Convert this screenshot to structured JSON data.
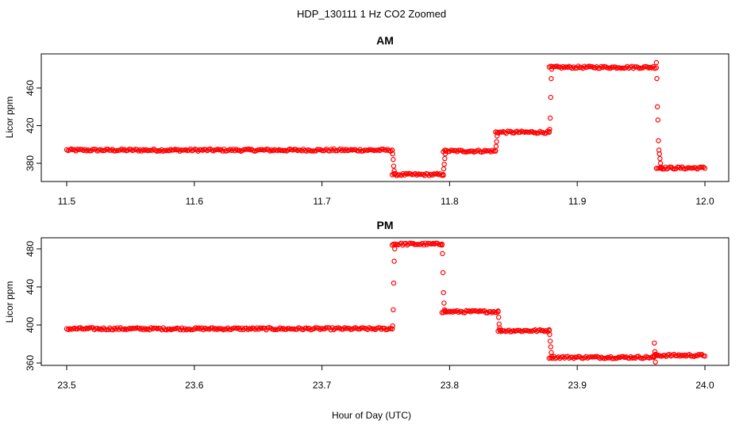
{
  "figure": {
    "title": "HDP_130111  1 Hz CO2 Zoomed",
    "xlabel": "Hour of Day (UTC)"
  },
  "colors": {
    "points": "#ff0000",
    "axes": "#000000"
  },
  "chart_data": [
    {
      "type": "scatter",
      "title": "AM",
      "ylabel": "Licor ppm",
      "xlim": [
        11.5,
        12.0
      ],
      "ylim": [
        362,
        494
      ],
      "xticks": [
        "11.5",
        "11.6",
        "11.7",
        "11.8",
        "11.9",
        "12.0"
      ],
      "yticks": [
        "380",
        "420",
        "460"
      ],
      "segments": [
        {
          "x0": 11.5,
          "x1": 11.755,
          "y": 394
        },
        {
          "x0": 11.755,
          "x1": 11.795,
          "y": 368
        },
        {
          "x0": 11.795,
          "x1": 11.836,
          "y": 393
        },
        {
          "x0": 11.836,
          "x1": 11.878,
          "y": 413
        },
        {
          "x0": 11.878,
          "x1": 11.962,
          "y": 482
        },
        {
          "x0": 11.962,
          "x1": 12.0,
          "y": 375
        }
      ],
      "transitions": [
        {
          "x": 11.755,
          "y": [
            394,
            390,
            384,
            377,
            372,
            368
          ]
        },
        {
          "x": 11.795,
          "y": [
            368,
            374,
            379,
            385,
            390,
            393
          ]
        },
        {
          "x": 11.836,
          "y": [
            393,
            398,
            403,
            409,
            413
          ]
        },
        {
          "x": 11.878,
          "y": [
            413,
            416,
            428,
            450,
            470,
            480
          ]
        },
        {
          "x": 11.962,
          "y": [
            487,
            470,
            440,
            426,
            404,
            394,
            390,
            385,
            380,
            376,
            375
          ]
        }
      ]
    },
    {
      "type": "scatter",
      "title": "PM",
      "ylabel": "Licor ppm",
      "xlim": [
        23.5,
        24.0
      ],
      "ylim": [
        355,
        491
      ],
      "xticks": [
        "23.5",
        "23.6",
        "23.7",
        "23.8",
        "23.9",
        "24.0"
      ],
      "yticks": [
        "360",
        "400",
        "440",
        "480"
      ],
      "segments": [
        {
          "x0": 23.5,
          "x1": 23.755,
          "y": 396
        },
        {
          "x0": 23.755,
          "x1": 23.794,
          "y": 485
        },
        {
          "x0": 23.794,
          "x1": 23.838,
          "y": 414
        },
        {
          "x0": 23.838,
          "x1": 23.878,
          "y": 394
        },
        {
          "x0": 23.878,
          "x1": 23.96,
          "y": 366
        },
        {
          "x0": 23.96,
          "x1": 24.0,
          "y": 368
        }
      ],
      "transitions": [
        {
          "x": 23.755,
          "y": [
            396,
            399,
            416,
            444,
            467,
            480,
            485
          ]
        },
        {
          "x": 23.794,
          "y": [
            485,
            475,
            455,
            434,
            423,
            416,
            414
          ]
        },
        {
          "x": 23.838,
          "y": [
            414,
            408,
            401,
            397,
            394
          ]
        },
        {
          "x": 23.878,
          "y": [
            394,
            390,
            383,
            377,
            371,
            367
          ]
        },
        {
          "x": 23.96,
          "y": [
            366,
            381,
            372,
            361,
            369
          ]
        }
      ]
    }
  ]
}
